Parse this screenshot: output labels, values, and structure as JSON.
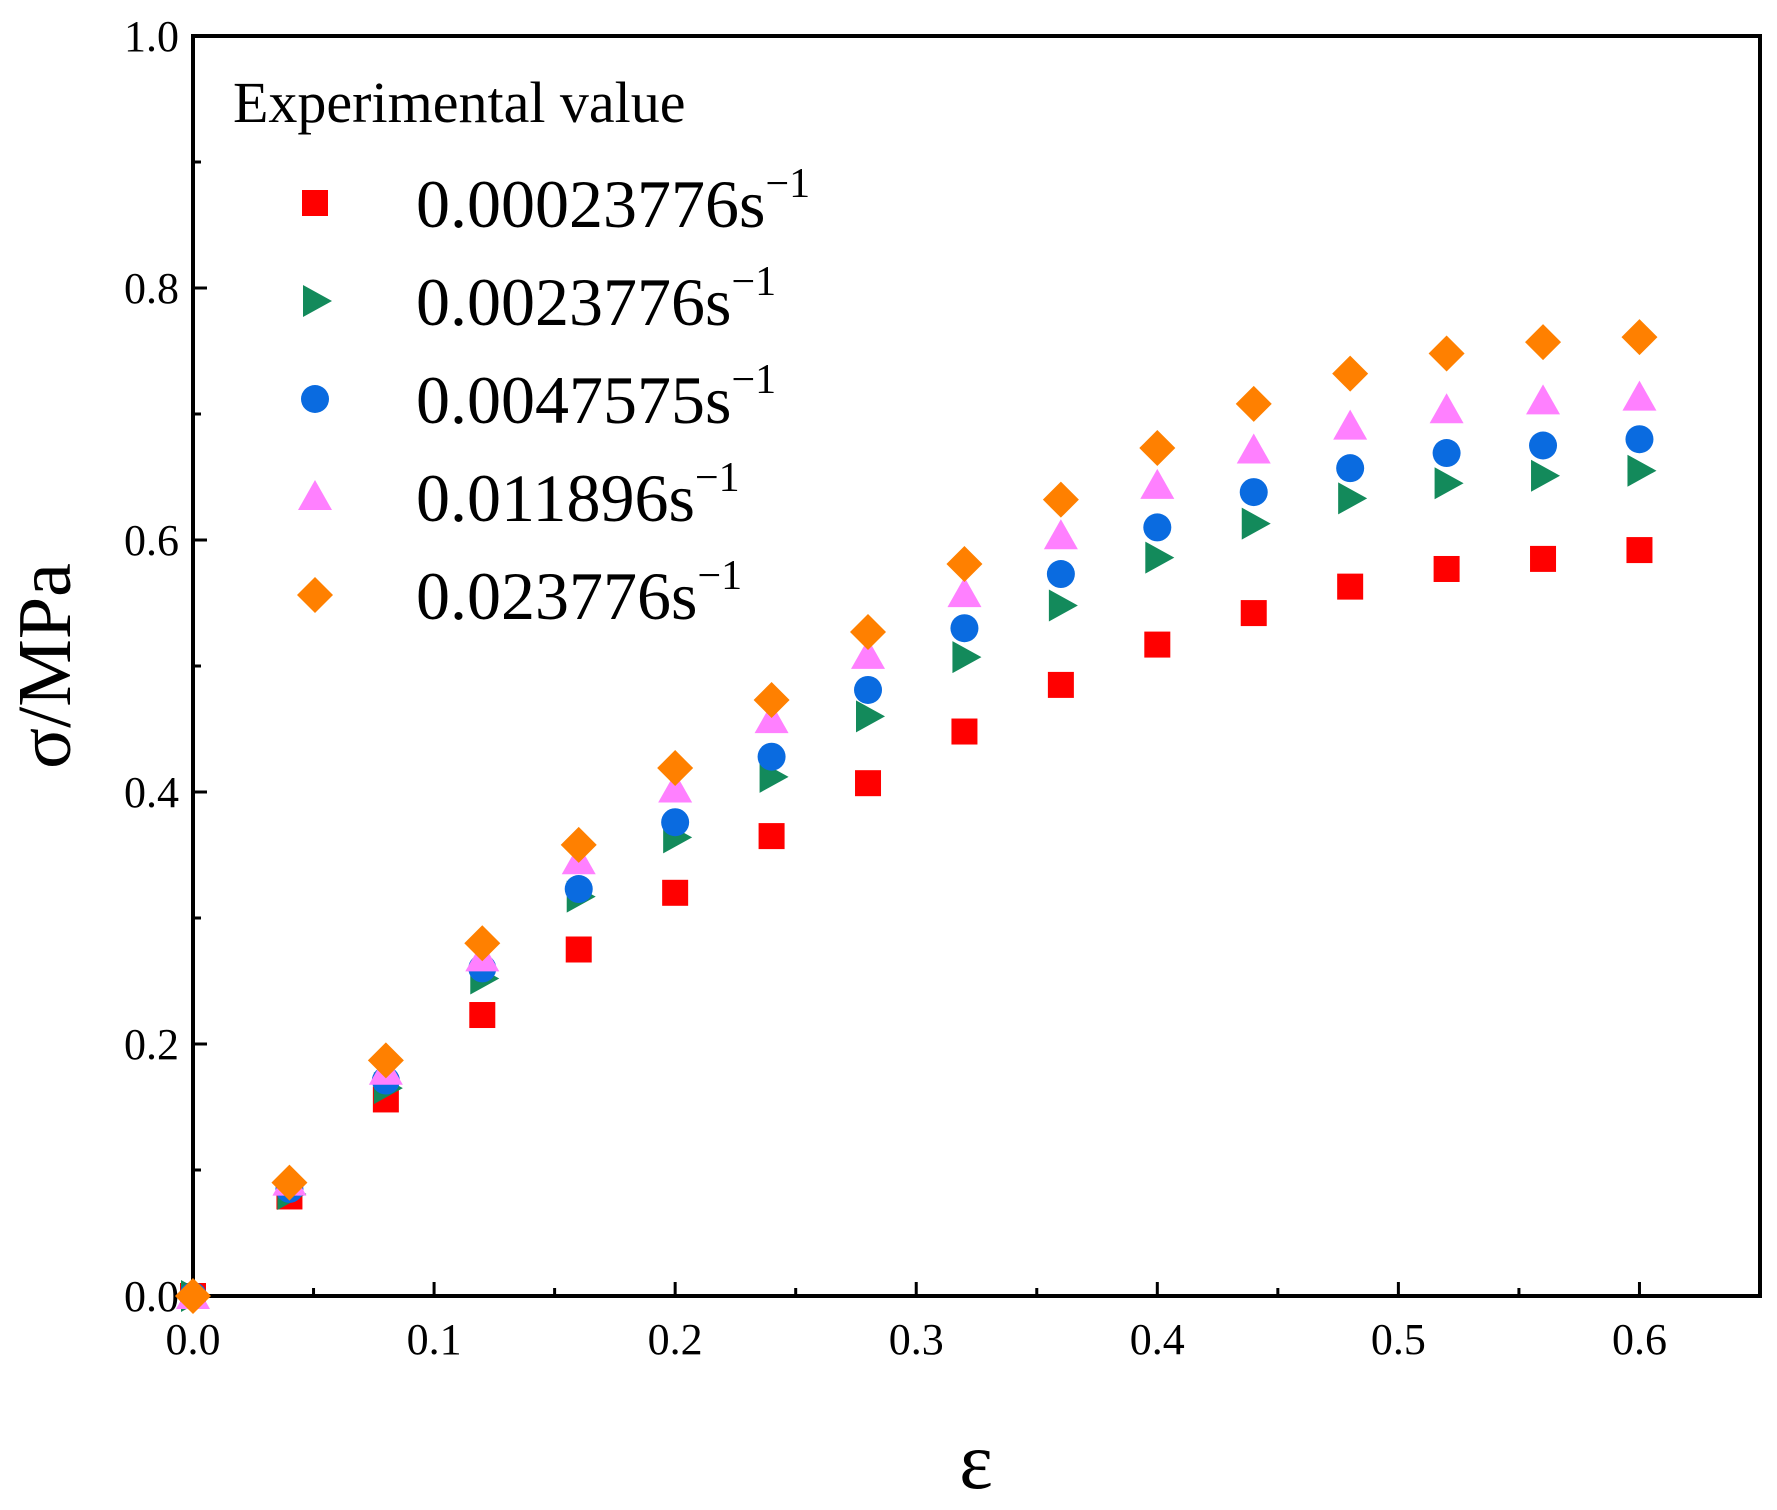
{
  "chart_data": {
    "type": "scatter",
    "xlabel": "ε",
    "ylabel": "σ/MPa",
    "xlim": [
      0.0,
      0.65
    ],
    "ylim": [
      0.0,
      1.0
    ],
    "xticks": [
      0.0,
      0.1,
      0.2,
      0.3,
      0.4,
      0.5,
      0.6
    ],
    "xtick_labels": [
      "0.0",
      "0.1",
      "0.2",
      "0.3",
      "0.4",
      "0.5",
      "0.6"
    ],
    "yticks": [
      0.0,
      0.2,
      0.4,
      0.6,
      0.8,
      1.0
    ],
    "ytick_labels": [
      "0.0",
      "0.2",
      "0.4",
      "0.6",
      "0.8",
      "1.0"
    ],
    "legend": {
      "title": "Experimental value",
      "placement": "top-left",
      "unit_suffix": "s",
      "unit_superscript": "−1"
    },
    "x": [
      0.0,
      0.04,
      0.08,
      0.12,
      0.16,
      0.2,
      0.24,
      0.28,
      0.32,
      0.36,
      0.4,
      0.44,
      0.48,
      0.52,
      0.56,
      0.6
    ],
    "series": [
      {
        "name": "0.00023776",
        "marker": "square",
        "color": "#ff0000",
        "values": [
          0.0,
          0.079,
          0.156,
          0.223,
          0.275,
          0.32,
          0.365,
          0.407,
          0.448,
          0.485,
          0.517,
          0.542,
          0.563,
          0.577,
          0.585,
          0.592
        ]
      },
      {
        "name": "0.0023776",
        "marker": "triangle-right",
        "color": "#138a5b",
        "values": [
          0.0,
          0.081,
          0.165,
          0.252,
          0.317,
          0.364,
          0.412,
          0.46,
          0.507,
          0.548,
          0.586,
          0.613,
          0.633,
          0.645,
          0.651,
          0.655
        ]
      },
      {
        "name": "0.0047575",
        "marker": "circle",
        "color": "#0a6be0",
        "values": [
          0.0,
          0.085,
          0.171,
          0.26,
          0.323,
          0.376,
          0.428,
          0.481,
          0.53,
          0.573,
          0.61,
          0.638,
          0.657,
          0.669,
          0.675,
          0.68
        ]
      },
      {
        "name": "0.011896",
        "marker": "triangle-up",
        "color": "#ff80ff",
        "values": [
          0.0,
          0.09,
          0.178,
          0.268,
          0.345,
          0.402,
          0.457,
          0.508,
          0.557,
          0.603,
          0.643,
          0.671,
          0.69,
          0.703,
          0.71,
          0.713
        ]
      },
      {
        "name": "0.023776",
        "marker": "diamond",
        "color": "#ff8000",
        "values": [
          0.0,
          0.09,
          0.187,
          0.28,
          0.358,
          0.419,
          0.473,
          0.527,
          0.581,
          0.632,
          0.673,
          0.708,
          0.732,
          0.748,
          0.757,
          0.761
        ]
      }
    ]
  }
}
